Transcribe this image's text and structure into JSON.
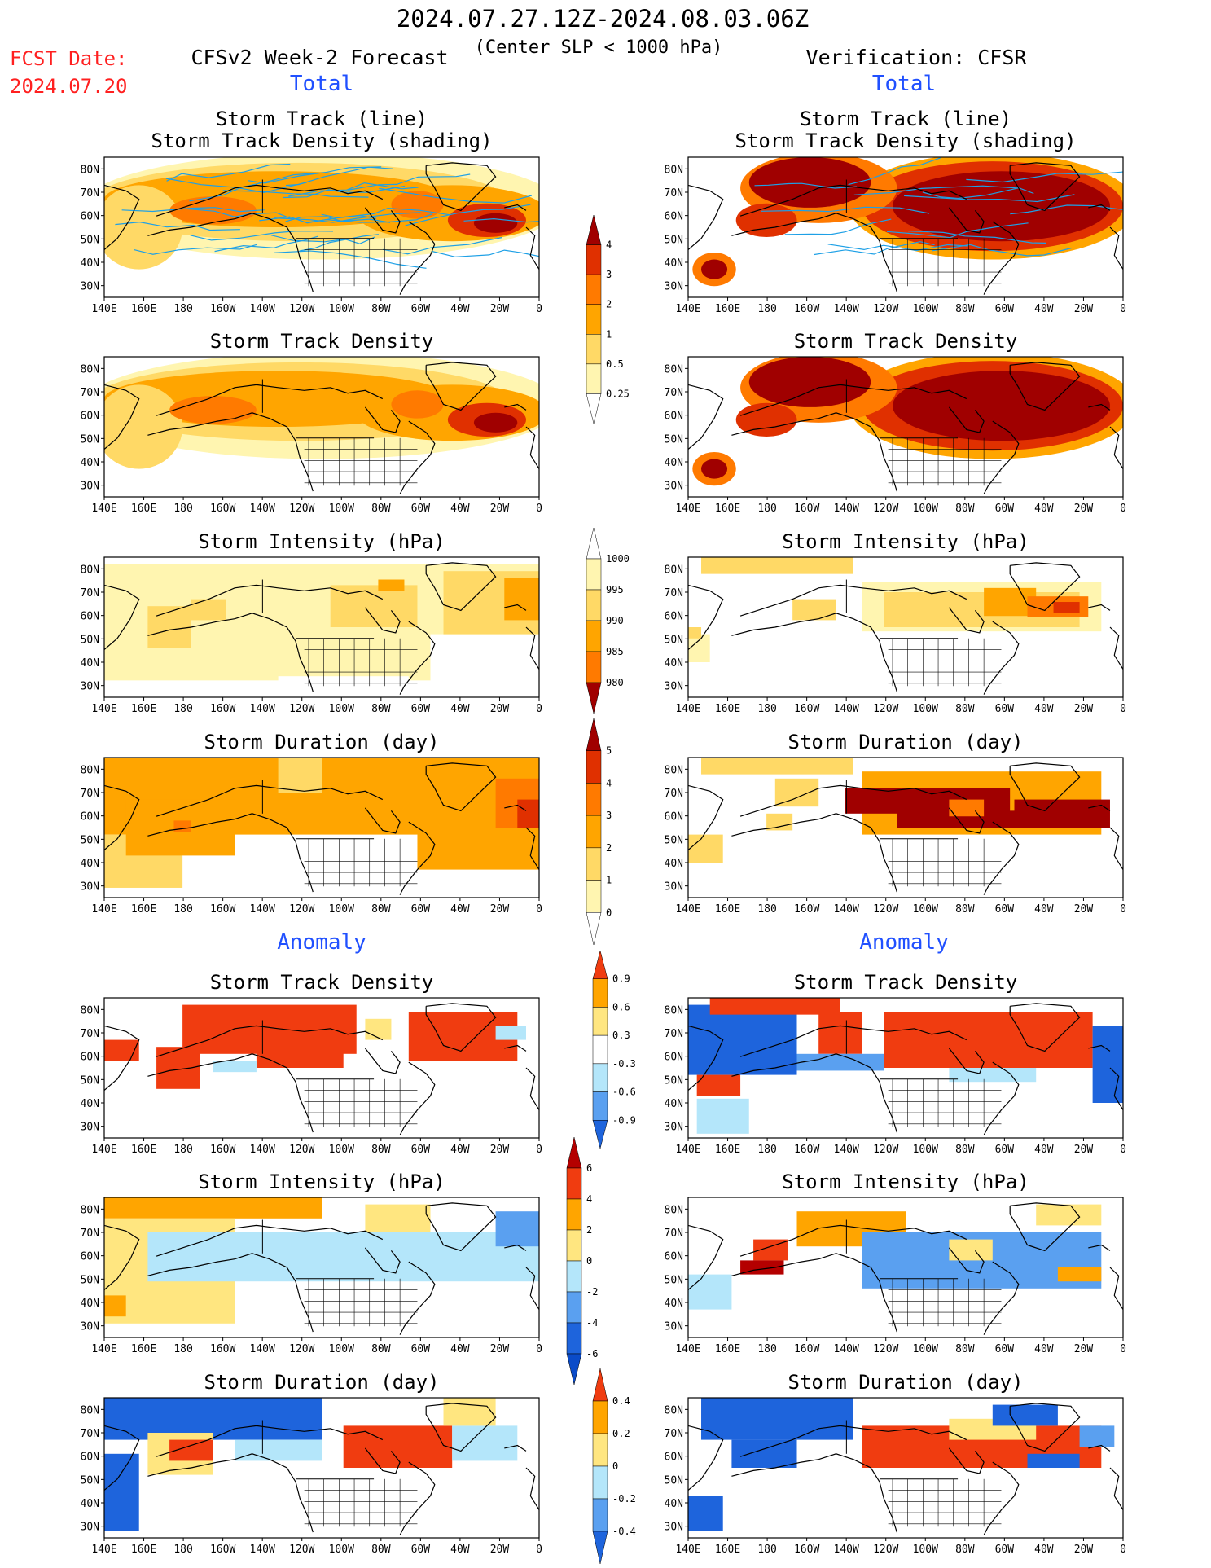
{
  "header": {
    "period": "2024.07.27.12Z-2024.08.03.06Z",
    "subtitle": "(Center SLP < 1000 hPa)",
    "fcst_label": "FCST Date:",
    "fcst_date": "2024.07.20",
    "left_title": "CFSv2 Week-2 Forecast",
    "right_title": "Verification: CFSR",
    "total_left": "Total",
    "total_right": "Total",
    "anom_left": "Anomaly",
    "anom_right": "Anomaly"
  },
  "panel_titles": {
    "p1": [
      "Storm Track (line)",
      "Storm Track Density (shading)"
    ],
    "p2": "Storm Track Density",
    "p3": "Storm Intensity (hPa)",
    "p4": "Storm Duration (day)",
    "p5": "Storm Track Density",
    "p6": "Storm Intensity (hPa)",
    "p7": "Storm Duration (day)"
  },
  "axes": {
    "lon_labels": [
      "140E",
      "160E",
      "180",
      "160W",
      "140W",
      "120W",
      "100W",
      "80W",
      "60W",
      "40W",
      "20W",
      "0"
    ],
    "lat_labels": [
      "80N",
      "70N",
      "60N",
      "50N",
      "40N",
      "30N"
    ]
  },
  "colorbars": {
    "density_total": [
      "0.25",
      "0.5",
      "1",
      "2",
      "3",
      "4"
    ],
    "intensity_total": [
      "1000",
      "995",
      "990",
      "985",
      "980"
    ],
    "duration_total": [
      "0",
      "1",
      "2",
      "3",
      "4",
      "5"
    ],
    "density_anom": [
      "0.9",
      "0.6",
      "0.3",
      "-0.3",
      "-0.6",
      "-0.9"
    ],
    "intensity_anom": [
      "6",
      "4",
      "2",
      "0",
      "-2",
      "-4",
      "-6"
    ],
    "duration_anom": [
      "0.4",
      "0.2",
      "0",
      "-0.2",
      "-0.4"
    ]
  },
  "colors": {
    "total_scale": [
      "#fff5b0",
      "#ffd966",
      "#ffa500",
      "#ff7a00",
      "#e03000",
      "#a00000"
    ],
    "anom_scale": [
      "#1e64dc",
      "#5aa0f0",
      "#b4e6fa",
      "#ffffff",
      "#ffe680",
      "#ffa500",
      "#f03c10"
    ],
    "track_line": "#1ea0e6",
    "title_red": "#ff2020",
    "title_blue": "#2050ff"
  }
}
